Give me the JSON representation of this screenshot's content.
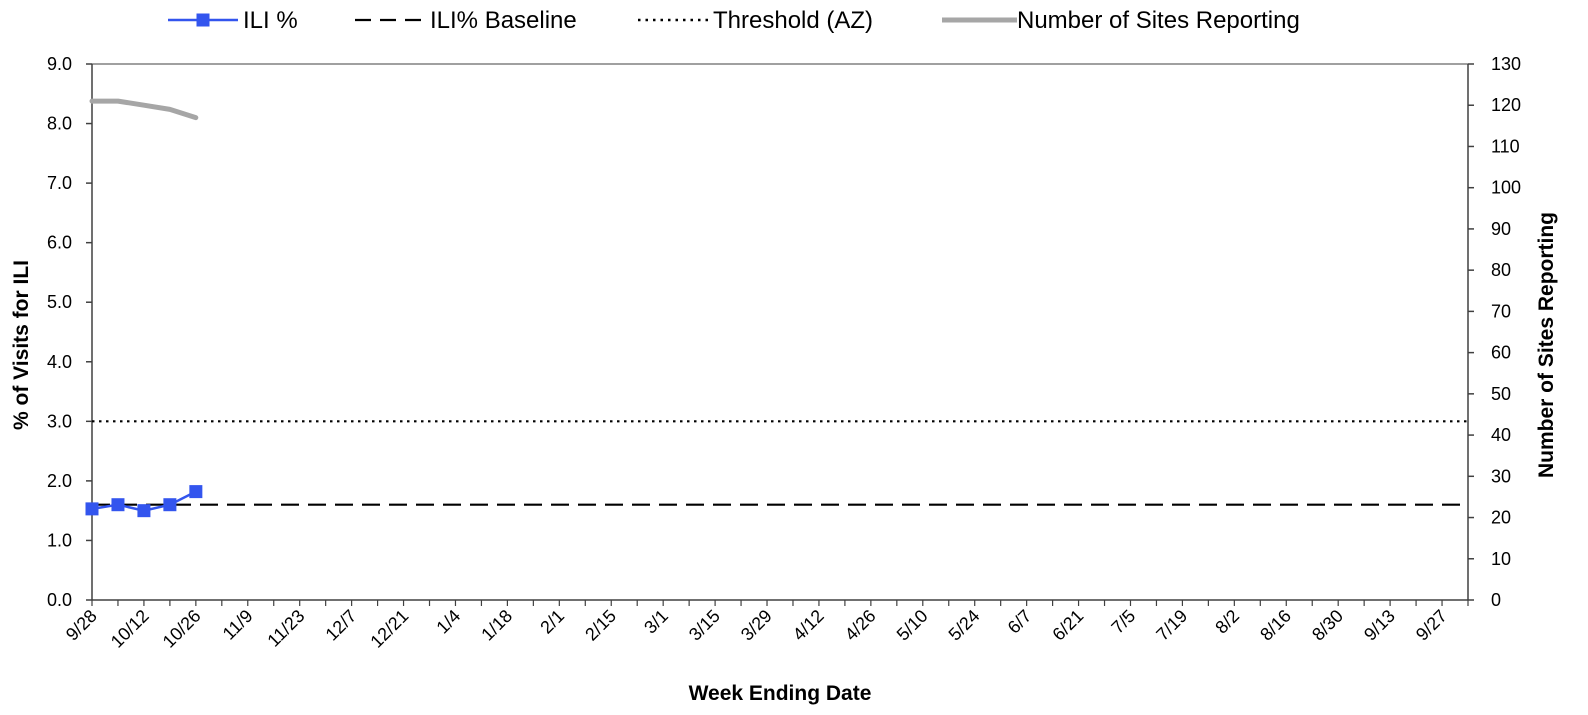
{
  "chart_data": {
    "type": "line",
    "xlabel": "Week Ending Date",
    "ylabel": "% of Visits for ILI",
    "y2label": "Number of Sites Reporting",
    "ylim": [
      0,
      9
    ],
    "y2lim": [
      0,
      130
    ],
    "y_ticks": [
      "0.0",
      "1.0",
      "2.0",
      "3.0",
      "4.0",
      "5.0",
      "6.0",
      "7.0",
      "8.0",
      "9.0"
    ],
    "y2_ticks": [
      "0",
      "10",
      "20",
      "30",
      "40",
      "50",
      "60",
      "70",
      "80",
      "90",
      "100",
      "110",
      "120",
      "130"
    ],
    "x_tick_labels": [
      "9/28",
      "10/12",
      "10/26",
      "11/9",
      "11/23",
      "12/7",
      "12/21",
      "1/4",
      "1/18",
      "2/1",
      "2/15",
      "3/1",
      "3/15",
      "3/29",
      "4/12",
      "4/26",
      "5/10",
      "5/24",
      "6/7",
      "6/21",
      "7/5",
      "7/19",
      "8/2",
      "8/16",
      "8/30",
      "9/13",
      "9/27"
    ],
    "grid": false,
    "legend_position": "top",
    "legend": [
      "ILI %",
      "ILI% Baseline",
      "Threshold (AZ)",
      "Number of Sites Reporting"
    ],
    "series": [
      {
        "name": "ILI %",
        "axis": "left",
        "style": "solid-square-markers",
        "color": "#3355ee",
        "x": [
          "9/28",
          "10/5",
          "10/12",
          "10/19",
          "10/26"
        ],
        "values": [
          1.53,
          1.6,
          1.5,
          1.6,
          1.82
        ]
      },
      {
        "name": "ILI% Baseline",
        "axis": "left",
        "style": "dashed",
        "color": "#000000",
        "constant": 1.6
      },
      {
        "name": "Threshold (AZ)",
        "axis": "left",
        "style": "dotted",
        "color": "#000000",
        "constant": 3.0
      },
      {
        "name": "Number of Sites Reporting",
        "axis": "right",
        "style": "thick-solid",
        "color": "#a6a6a6",
        "x": [
          "9/28",
          "10/5",
          "10/12",
          "10/19",
          "10/26"
        ],
        "values": [
          121,
          121,
          120,
          119,
          117
        ]
      }
    ]
  }
}
